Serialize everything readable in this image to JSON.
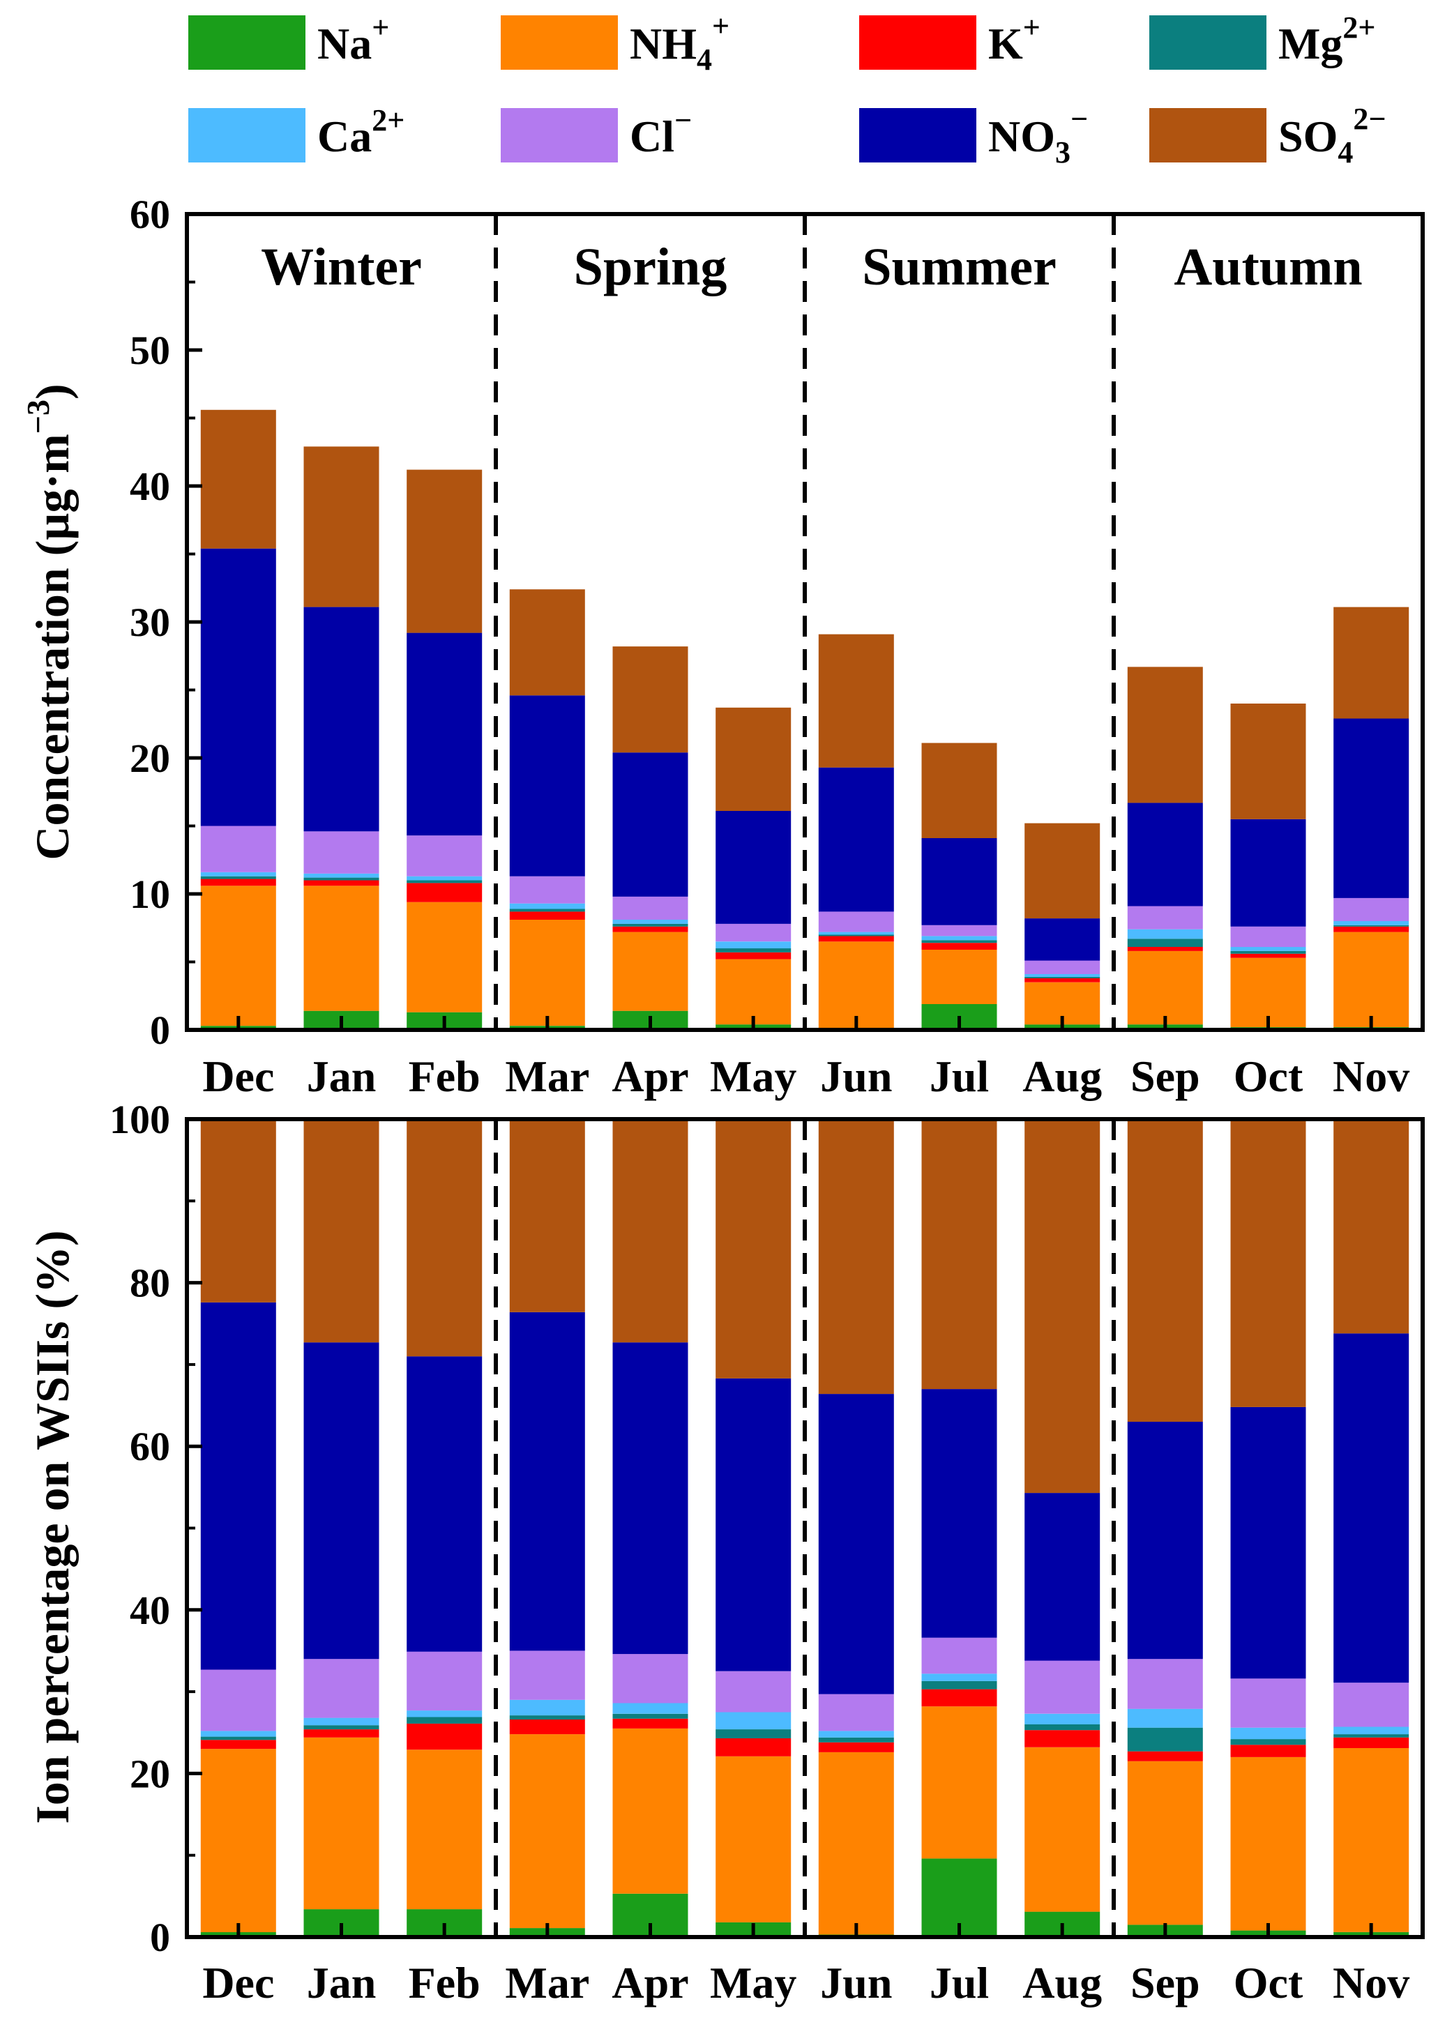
{
  "chart_data": {
    "type": "bar",
    "stacked": true,
    "legend": [
      {
        "key": "na",
        "base": "Na",
        "sub": "",
        "sup": "+",
        "color": "#1a9e1a"
      },
      {
        "key": "nh4",
        "base": "NH",
        "sub": "4",
        "sup": "+",
        "color": "#ff8300"
      },
      {
        "key": "k",
        "base": "K",
        "sub": "",
        "sup": "+",
        "color": "#ff0000"
      },
      {
        "key": "mg",
        "base": "Mg",
        "sub": "",
        "sup": "2+",
        "color": "#0b7f7f"
      },
      {
        "key": "ca",
        "base": "Ca",
        "sub": "",
        "sup": "2+",
        "color": "#4dbbff"
      },
      {
        "key": "cl",
        "base": "Cl",
        "sub": "",
        "sup": "−",
        "color": "#b37aef"
      },
      {
        "key": "no3",
        "base": "NO",
        "sub": "3",
        "sup": "−",
        "color": "#0000a6"
      },
      {
        "key": "so4",
        "base": "SO",
        "sub": "4",
        "sup": "2−",
        "color": "#b05410"
      }
    ],
    "categories": [
      "Dec",
      "Jan",
      "Feb",
      "Mar",
      "Apr",
      "May",
      "Jun",
      "Jul",
      "Aug",
      "Sep",
      "Oct",
      "Nov"
    ],
    "seasons": [
      "Winter",
      "Spring",
      "Summer",
      "Autumn"
    ],
    "charts": [
      {
        "id": "top",
        "ylabel": {
          "text": "Concentration (µg·m",
          "sup": "−3",
          "close": ")"
        },
        "ylim": [
          0,
          60
        ],
        "yticks": [
          0,
          10,
          20,
          30,
          40,
          50,
          60
        ],
        "series": [
          {
            "key": "na",
            "values": [
              0.3,
              1.4,
              1.3,
              0.3,
              1.4,
              0.4,
              0.1,
              1.9,
              0.4,
              0.4,
              0.2,
              0.2
            ]
          },
          {
            "key": "nh4",
            "values": [
              10.3,
              9.2,
              8.1,
              7.8,
              5.8,
              4.8,
              6.4,
              4.0,
              3.1,
              5.4,
              5.1,
              7.0
            ]
          },
          {
            "key": "k",
            "values": [
              0.5,
              0.4,
              1.4,
              0.6,
              0.4,
              0.5,
              0.4,
              0.5,
              0.3,
              0.3,
              0.3,
              0.4
            ]
          },
          {
            "key": "mg",
            "values": [
              0.2,
              0.2,
              0.2,
              0.2,
              0.2,
              0.3,
              0.1,
              0.2,
              0.1,
              0.6,
              0.2,
              0.1
            ]
          },
          {
            "key": "ca",
            "values": [
              0.3,
              0.3,
              0.3,
              0.4,
              0.3,
              0.5,
              0.2,
              0.3,
              0.2,
              0.7,
              0.3,
              0.3
            ]
          },
          {
            "key": "cl",
            "values": [
              3.4,
              3.1,
              3.0,
              2.0,
              1.7,
              1.3,
              1.5,
              0.8,
              1.0,
              1.7,
              1.5,
              1.7
            ]
          },
          {
            "key": "no3",
            "values": [
              20.4,
              16.5,
              14.9,
              13.3,
              10.6,
              8.3,
              10.6,
              6.4,
              3.1,
              7.6,
              7.9,
              13.2
            ]
          },
          {
            "key": "so4",
            "values": [
              10.2,
              11.8,
              12.0,
              7.8,
              7.8,
              7.6,
              9.8,
              7.0,
              7.0,
              10.0,
              8.5,
              8.2
            ]
          }
        ]
      },
      {
        "id": "bottom",
        "ylabel": {
          "text": "Ion percentage on WSIIs (%)",
          "sup": "",
          "close": ""
        },
        "ylim": [
          0,
          100
        ],
        "yticks": [
          0,
          20,
          40,
          60,
          80,
          100
        ],
        "series": [
          {
            "key": "na",
            "values": [
              0.6,
              3.4,
              3.4,
              1.1,
              5.3,
              1.8,
              0.3,
              9.6,
              3.1,
              1.5,
              0.8,
              0.6
            ]
          },
          {
            "key": "nh4",
            "values": [
              22.4,
              21.0,
              19.5,
              23.7,
              20.2,
              20.3,
              22.3,
              18.6,
              20.1,
              20.0,
              21.2,
              22.5
            ]
          },
          {
            "key": "k",
            "values": [
              1.1,
              1.0,
              3.2,
              1.8,
              1.2,
              2.2,
              1.2,
              2.1,
              2.1,
              1.2,
              1.5,
              1.3
            ]
          },
          {
            "key": "mg",
            "values": [
              0.4,
              0.5,
              0.8,
              0.5,
              0.6,
              1.1,
              0.6,
              1.0,
              0.7,
              2.9,
              0.7,
              0.4
            ]
          },
          {
            "key": "ca",
            "values": [
              0.7,
              0.9,
              0.8,
              1.9,
              1.3,
              2.1,
              0.8,
              0.9,
              1.3,
              2.3,
              1.4,
              0.9
            ]
          },
          {
            "key": "cl",
            "values": [
              7.5,
              7.2,
              7.2,
              6.0,
              6.0,
              5.0,
              4.5,
              4.4,
              6.5,
              6.1,
              6.0,
              5.4
            ]
          },
          {
            "key": "no3",
            "values": [
              44.9,
              38.7,
              36.1,
              41.4,
              38.1,
              35.8,
              36.7,
              30.4,
              20.5,
              29.0,
              33.2,
              42.7
            ]
          },
          {
            "key": "so4",
            "values": [
              22.4,
              27.3,
              29.0,
              23.6,
              27.3,
              31.7,
              33.6,
              33.0,
              45.7,
              37.0,
              35.2,
              26.2
            ]
          }
        ]
      }
    ]
  }
}
